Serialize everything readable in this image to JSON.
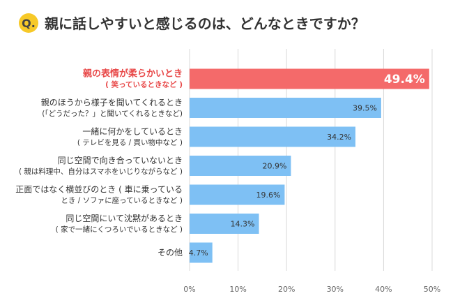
{
  "header": {
    "q_badge": "Q.",
    "question": "親に話しやすいと感じるのは、どんなときですか？"
  },
  "colors": {
    "highlight_bar": "#f46a6a",
    "highlight_text": "#e84848",
    "bar": "#7ec0f4",
    "grid": "#d9d9d9",
    "text": "#333333",
    "axis_text": "#666666",
    "badge": "#f7c928",
    "badge_text": "#444444"
  },
  "chart_data": {
    "type": "bar",
    "orientation": "horizontal",
    "unit": "%",
    "xlim": [
      0,
      50
    ],
    "xticks": [
      "0%",
      "10%",
      "20%",
      "30%",
      "40%",
      "50%"
    ],
    "categories": [
      {
        "lines": [
          "親の表情が柔らかいとき",
          "( 笑っているときなど )"
        ],
        "value": 49.4,
        "label": "49.4%",
        "highlight": true
      },
      {
        "lines": [
          "親のほうから様子を聞いてくれるとき",
          "(「どうだった？」と聞いてくれるときなど)"
        ],
        "value": 39.5,
        "label": "39.5%",
        "highlight": false
      },
      {
        "lines": [
          "一緒に何かをしているとき",
          "( テレビを見る / 買い物中など )"
        ],
        "value": 34.2,
        "label": "34.2%",
        "highlight": false
      },
      {
        "lines": [
          "同じ空間で向き合っていないとき",
          "( 親は料理中、自分はスマホをいじりながらなど )"
        ],
        "value": 20.9,
        "label": "20.9%",
        "highlight": false
      },
      {
        "lines": [
          "正面ではなく横並びのとき ( 車に乗っている",
          "とき / ソファに座っているときなど )"
        ],
        "value": 19.6,
        "label": "19.6%",
        "highlight": false
      },
      {
        "lines": [
          "同じ空間にいて沈黙があるとき",
          "( 家で一緒にくつろいでいるときなど )"
        ],
        "value": 14.3,
        "label": "14.3%",
        "highlight": false
      },
      {
        "lines": [
          "その他"
        ],
        "value": 4.7,
        "label": "4.7%",
        "highlight": false
      }
    ]
  }
}
